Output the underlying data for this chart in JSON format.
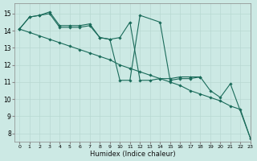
{
  "xlabel": "Humidex (Indice chaleur)",
  "xlim": [
    -0.5,
    23
  ],
  "ylim": [
    7.5,
    15.6
  ],
  "yticks": [
    8,
    9,
    10,
    11,
    12,
    13,
    14,
    15
  ],
  "xticks": [
    0,
    1,
    2,
    3,
    4,
    5,
    6,
    7,
    8,
    9,
    10,
    11,
    12,
    13,
    14,
    15,
    16,
    17,
    18,
    19,
    20,
    21,
    22,
    23
  ],
  "background_color": "#cce9e4",
  "grid_color": "#b8d8d2",
  "line_color": "#1a6b5a",
  "series": [
    {
      "x": [
        0,
        1,
        2,
        3,
        4,
        5,
        6,
        7,
        8,
        9,
        10,
        11,
        12,
        14,
        15,
        16,
        17,
        18,
        19,
        20,
        21,
        23
      ],
      "y": [
        14.1,
        14.8,
        14.9,
        15.0,
        14.2,
        14.2,
        14.2,
        14.3,
        13.6,
        13.5,
        11.1,
        11.1,
        14.9,
        14.5,
        11.1,
        11.2,
        11.2,
        11.3,
        10.5,
        10.1,
        10.9,
        7.7
      ]
    },
    {
      "x": [
        0,
        1,
        2,
        3,
        4,
        5,
        6,
        7,
        8,
        9,
        10,
        11,
        12,
        13,
        14,
        15,
        16,
        17,
        18
      ],
      "y": [
        14.1,
        14.8,
        14.9,
        15.1,
        14.3,
        14.3,
        14.3,
        14.4,
        13.6,
        13.5,
        13.6,
        14.5,
        11.1,
        11.1,
        11.2,
        11.2,
        11.3,
        11.3,
        11.3
      ]
    },
    {
      "x": [
        0,
        1,
        2,
        3,
        4,
        5,
        6,
        7,
        8,
        9,
        10,
        11,
        12,
        13,
        14,
        15,
        16,
        17,
        18,
        19,
        20,
        21,
        22,
        23
      ],
      "y": [
        14.1,
        13.9,
        13.7,
        13.5,
        13.3,
        13.1,
        12.9,
        12.7,
        12.5,
        12.3,
        12.0,
        11.8,
        11.6,
        11.4,
        11.2,
        11.0,
        10.8,
        10.5,
        10.3,
        10.1,
        9.9,
        9.6,
        9.4,
        7.7
      ]
    }
  ]
}
